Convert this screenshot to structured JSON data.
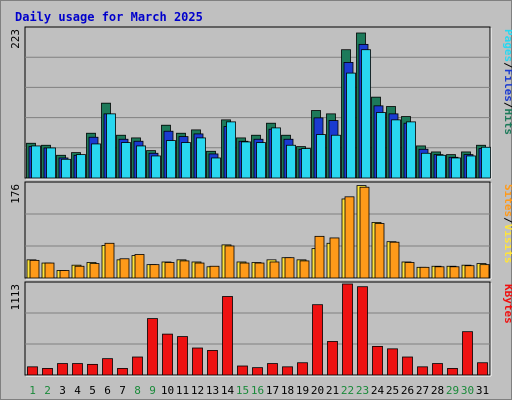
{
  "title": "Daily usage for March 2025",
  "colors": {
    "hits": "#1d7a5a",
    "files": "#1a3bd1",
    "pages": "#29d7f0",
    "visits": "#ffe43a",
    "sites": "#ff9a1a",
    "kbytes": "#ee1111",
    "weekday": "#000000",
    "weekend": "#1a8a3a",
    "sep": "#000000"
  },
  "chart_data": [
    {
      "type": "bar",
      "name": "hits-files-pages",
      "max_label": "223",
      "y_range": [
        0,
        223
      ],
      "side_labels": [
        {
          "text": "Pages",
          "color": "#29d7f0"
        },
        {
          "text": "/",
          "color": "#000000"
        },
        {
          "text": "Files",
          "color": "#1a3bd1"
        },
        {
          "text": "/",
          "color": "#000000"
        },
        {
          "text": "Hits",
          "color": "#1d7a5a"
        }
      ],
      "categories": [
        "1",
        "2",
        "3",
        "4",
        "5",
        "6",
        "7",
        "8",
        "9",
        "10",
        "11",
        "12",
        "13",
        "14",
        "15",
        "16",
        "17",
        "18",
        "19",
        "20",
        "21",
        "22",
        "23",
        "24",
        "25",
        "26",
        "27",
        "28",
        "29",
        "30",
        "31"
      ],
      "series": [
        {
          "name": "Hits",
          "values": [
            52,
            49,
            34,
            38,
            67,
            112,
            64,
            60,
            41,
            79,
            67,
            72,
            40,
            87,
            60,
            64,
            82,
            64,
            47,
            101,
            96,
            192,
            217,
            121,
            107,
            92,
            48,
            39,
            35,
            39,
            49
          ]
        },
        {
          "name": "Files",
          "values": [
            47,
            45,
            30,
            34,
            61,
            96,
            58,
            55,
            37,
            70,
            62,
            66,
            36,
            77,
            55,
            58,
            73,
            58,
            43,
            90,
            86,
            173,
            200,
            108,
            96,
            82,
            43,
            35,
            31,
            35,
            44
          ]
        },
        {
          "name": "Pages",
          "values": [
            48,
            45,
            28,
            35,
            51,
            96,
            53,
            48,
            33,
            56,
            53,
            60,
            30,
            84,
            54,
            53,
            75,
            49,
            44,
            65,
            64,
            157,
            192,
            98,
            87,
            84,
            37,
            34,
            30,
            33,
            46
          ]
        }
      ]
    },
    {
      "type": "bar",
      "name": "visits-sites",
      "max_label": "176",
      "y_range": [
        0,
        176
      ],
      "side_labels": [
        {
          "text": "Sites",
          "color": "#ff9a1a"
        },
        {
          "text": "/",
          "color": "#000000"
        },
        {
          "text": "Visits",
          "color": "#ffe43a"
        }
      ],
      "categories": [
        "1",
        "2",
        "3",
        "4",
        "5",
        "6",
        "7",
        "8",
        "9",
        "10",
        "11",
        "12",
        "13",
        "14",
        "15",
        "16",
        "17",
        "18",
        "19",
        "20",
        "21",
        "22",
        "23",
        "24",
        "25",
        "26",
        "27",
        "28",
        "29",
        "30",
        "31"
      ],
      "series": [
        {
          "name": "Visits",
          "values": [
            34,
            28,
            14,
            24,
            29,
            61,
            34,
            42,
            25,
            30,
            34,
            30,
            21,
            62,
            30,
            29,
            34,
            38,
            34,
            55,
            65,
            148,
            173,
            104,
            68,
            30,
            20,
            22,
            22,
            24,
            27
          ]
        },
        {
          "name": "Sites",
          "values": [
            33,
            28,
            14,
            22,
            27,
            65,
            36,
            44,
            25,
            29,
            32,
            28,
            22,
            60,
            28,
            28,
            30,
            38,
            32,
            78,
            75,
            152,
            170,
            102,
            67,
            29,
            20,
            21,
            21,
            23,
            25
          ]
        }
      ]
    },
    {
      "type": "bar",
      "name": "kbytes",
      "max_label": "1113",
      "y_range": [
        0,
        1113
      ],
      "side_labels": [
        {
          "text": "KBytes",
          "color": "#ee1111"
        }
      ],
      "categories": [
        "1",
        "2",
        "3",
        "4",
        "5",
        "6",
        "7",
        "8",
        "9",
        "10",
        "11",
        "12",
        "13",
        "14",
        "15",
        "16",
        "17",
        "18",
        "19",
        "20",
        "21",
        "22",
        "23",
        "24",
        "25",
        "26",
        "27",
        "28",
        "29",
        "30",
        "31"
      ],
      "series": [
        {
          "name": "KBytes",
          "values": [
            100,
            80,
            140,
            140,
            130,
            200,
            80,
            220,
            690,
            500,
            470,
            330,
            300,
            960,
            110,
            90,
            140,
            100,
            150,
            860,
            410,
            1113,
            1080,
            350,
            320,
            220,
            100,
            140,
            80,
            530,
            150
          ]
        }
      ]
    }
  ],
  "weekend_days": [
    1,
    2,
    8,
    9,
    15,
    16,
    22,
    23,
    29,
    30
  ]
}
